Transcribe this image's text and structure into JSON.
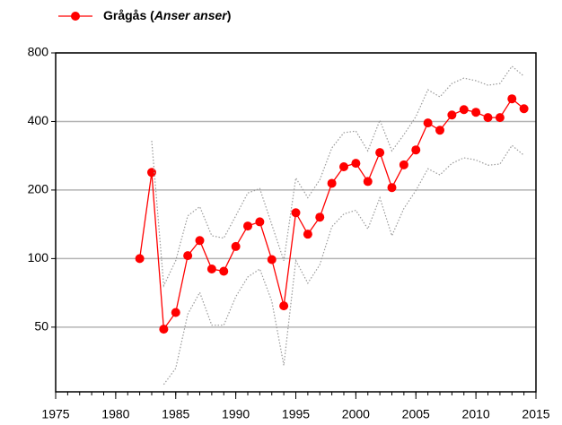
{
  "chart_data": {
    "type": "line",
    "x": [
      1982,
      1983,
      1984,
      1985,
      1986,
      1987,
      1988,
      1989,
      1990,
      1991,
      1992,
      1993,
      1994,
      1995,
      1996,
      1997,
      1998,
      1999,
      2000,
      2001,
      2002,
      2003,
      2004,
      2005,
      2006,
      2007,
      2008,
      2009,
      2010,
      2011,
      2012,
      2013,
      2014
    ],
    "series": [
      {
        "name": "Grågås (Anser anser)",
        "color": "#ff0000",
        "style": "solid",
        "markers": true,
        "values": [
          100,
          239,
          49,
          58,
          103,
          120,
          90,
          88,
          113,
          139,
          145,
          99,
          62,
          159,
          128,
          152,
          214,
          253,
          262,
          218,
          292,
          205,
          258,
          300,
          394,
          366,
          427,
          451,
          439,
          416,
          416,
          503,
          455
        ]
      },
      {
        "color": "#9a9a9a",
        "style": "dotted",
        "markers": false,
        "values": [
          null,
          329,
          76,
          98,
          154,
          169,
          126,
          123,
          154,
          194,
          203,
          141,
          98,
          226,
          185,
          222,
          306,
          357,
          363,
          297,
          405,
          297,
          350,
          420,
          551,
          513,
          587,
          620,
          604,
          577,
          587,
          699,
          632
        ]
      },
      {
        "color": "#9a9a9a",
        "style": "dotted",
        "markers": false,
        "values": [
          null,
          null,
          28,
          33,
          57,
          71,
          51,
          51,
          68,
          83,
          90,
          65,
          34,
          98,
          78,
          94,
          138,
          157,
          163,
          135,
          185,
          126,
          166,
          199,
          248,
          233,
          262,
          277,
          271,
          257,
          260,
          314,
          284
        ]
      }
    ],
    "xlim": [
      1975,
      2015
    ],
    "xticks": [
      1975,
      1980,
      1985,
      1990,
      1995,
      2000,
      2005,
      2010,
      2015
    ],
    "ylim": [
      26,
      800
    ],
    "yticks": [
      50,
      100,
      200,
      400,
      800
    ],
    "log_y": true,
    "grid": true,
    "legend": "top-left"
  }
}
